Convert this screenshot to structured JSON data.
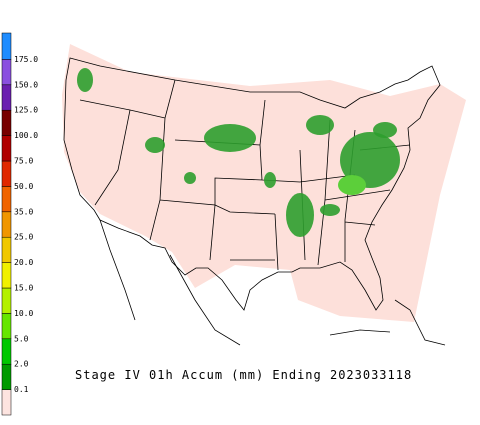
{
  "caption": "Stage IV 01h Accum (mm) Ending 2023033118",
  "legend": {
    "labels": [
      "0.1",
      "2.0",
      "5.0",
      "10.0",
      "15.0",
      "20.0",
      "25.0",
      "35.0",
      "50.0",
      "75.0",
      "100.0",
      "125.0",
      "150.0",
      "175.0"
    ],
    "colors": [
      "#fde4e0",
      "#009a00",
      "#00c800",
      "#66e600",
      "#b4f000",
      "#f0f000",
      "#f0c800",
      "#f09600",
      "#f06400",
      "#e02800",
      "#b00000",
      "#780000",
      "#6a1fb0",
      "#8a50e0",
      "#1e8cff"
    ]
  }
}
